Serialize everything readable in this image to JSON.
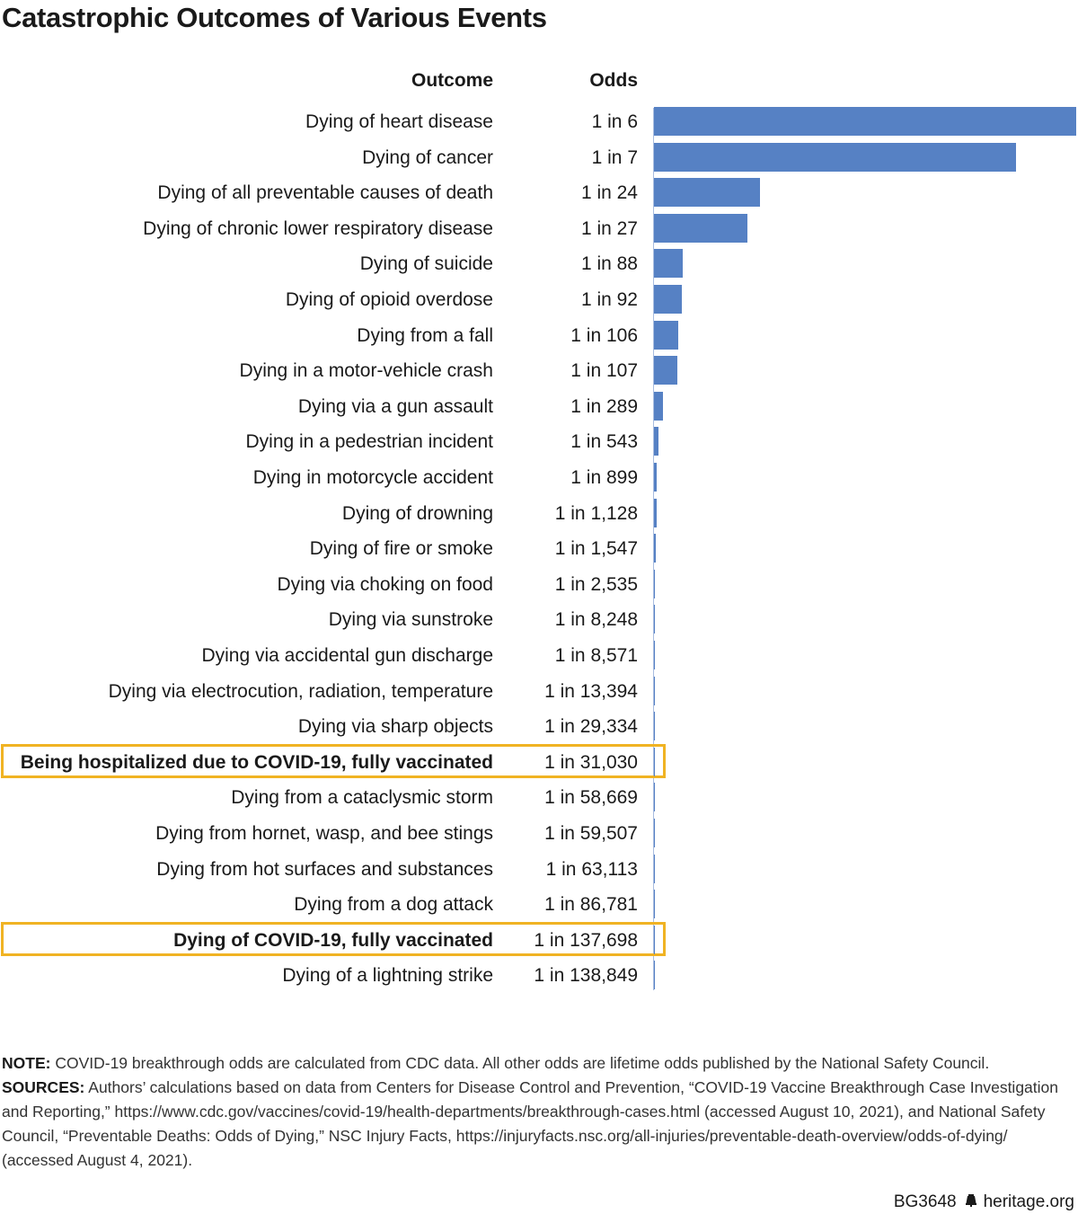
{
  "title": "Catastrophic Outcomes of Various Events",
  "columns": {
    "outcome": "Outcome",
    "odds": "Odds"
  },
  "colors": {
    "bar": "#5681c4",
    "highlight": "#f0b323"
  },
  "chart_data": {
    "type": "bar",
    "orientation": "horizontal",
    "categories": [
      "Dying of heart disease",
      "Dying of cancer",
      "Dying of all preventable causes of death",
      "Dying of chronic lower respiratory disease",
      "Dying of suicide",
      "Dying of opioid overdose",
      "Dying from a fall",
      "Dying in a motor-vehicle crash",
      "Dying via a gun assault",
      "Dying in a pedestrian incident",
      "Dying in motorcycle accident",
      "Dying of drowning",
      "Dying of fire or smoke",
      "Dying via choking on food",
      "Dying via sunstroke",
      "Dying via accidental gun discharge",
      "Dying via electrocution, radiation, temperature",
      "Dying via sharp objects",
      "Being hospitalized due to COVID-19, fully vaccinated",
      "Dying from a cataclysmic storm",
      "Dying from hornet, wasp, and bee stings",
      "Dying from hot surfaces and substances",
      "Dying from a dog attack",
      "Dying of COVID-19, fully vaccinated",
      "Dying of a lightning strike"
    ],
    "odds_labels": [
      "1 in 6",
      "1 in 7",
      "1 in 24",
      "1 in 27",
      "1 in 88",
      "1 in 92",
      "1 in 106",
      "1 in 107",
      "1 in 289",
      "1 in 543",
      "1 in 899",
      "1 in 1,128",
      "1 in 1,547",
      "1 in 2,535",
      "1 in 8,248",
      "1 in 8,571",
      "1 in 13,394",
      "1 in 29,334",
      "1 in 31,030",
      "1 in 58,669",
      "1 in 59,507",
      "1 in 63,113",
      "1 in 86,781",
      "1 in 137,698",
      "1 in 138,849"
    ],
    "odds_denominators": [
      6,
      7,
      24,
      27,
      88,
      92,
      106,
      107,
      289,
      543,
      899,
      1128,
      1547,
      2535,
      8248,
      8571,
      13394,
      29334,
      31030,
      58669,
      59507,
      63113,
      86781,
      137698,
      138849
    ],
    "highlighted": [
      "Being hospitalized due to COVID-19, fully vaccinated",
      "Dying of COVID-19, fully vaccinated"
    ],
    "legend": "none",
    "grid": false
  },
  "notes": {
    "note_label": "NOTE:",
    "note_text": " COVID-19 breakthrough odds are calculated from CDC data. All other odds are lifetime odds published by the National Safety Council.",
    "sources_label": "SOURCES:",
    "sources_text": " Authors’ calculations based on data from Centers for Disease Control and Prevention, “COVID-19 Vaccine Breakthrough Case Investigation and Reporting,” https://www.cdc.gov/vaccines/covid-19/health-departments/breakthrough-cases.html (accessed August 10, 2021), and National Safety Council, “Preventable Deaths: Odds of Dying,” NSC Injury Facts, https://injuryfacts.nsc.org/all-injuries/preventable-death-overview/odds-of-dying/ (accessed August 4, 2021)."
  },
  "footer": {
    "code": "BG3648",
    "bell_icon": "liberty-bell-icon",
    "site": "heritage.org"
  }
}
